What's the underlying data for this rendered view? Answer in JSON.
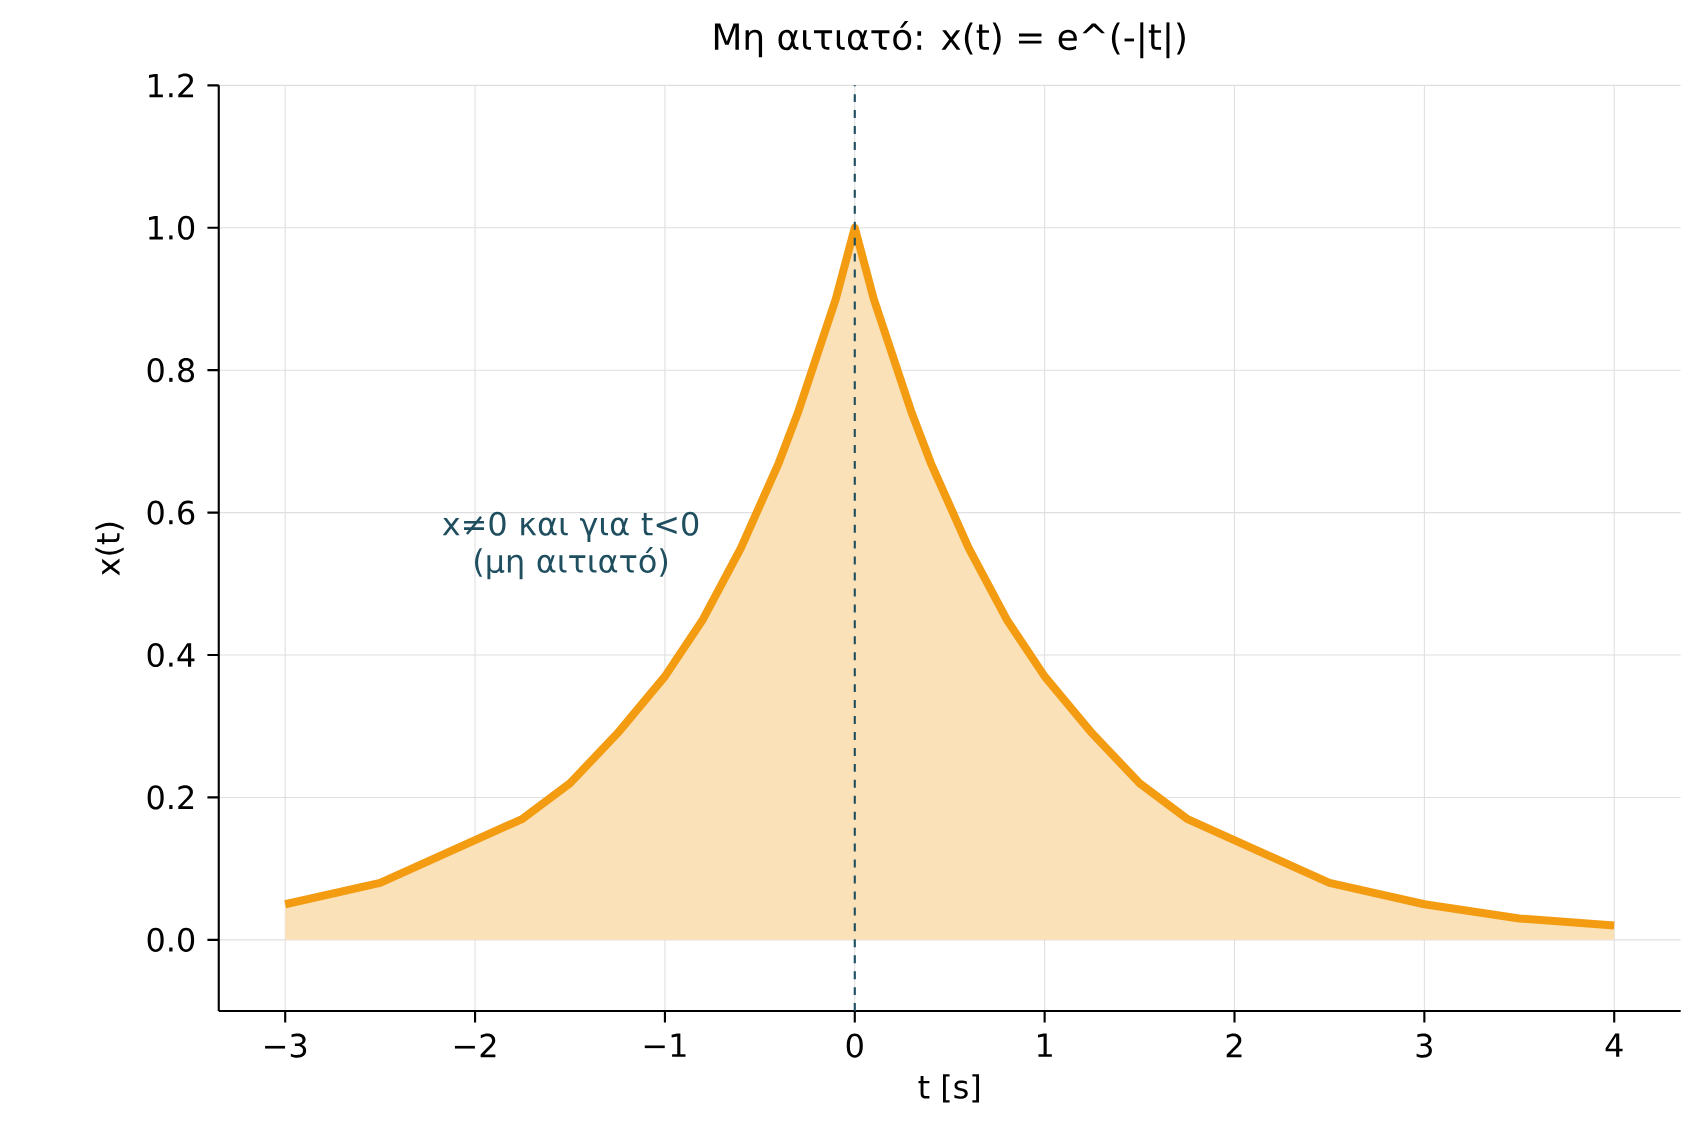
{
  "chart_data": {
    "type": "area",
    "title": "Μη αιτιατό: x(t) = e^(-|t|)",
    "xlabel": "t [s]",
    "ylabel": "x(t)",
    "x": [
      -3,
      -2.5,
      -2,
      -1.75,
      -1.5,
      -1.25,
      -1,
      -0.8,
      -0.6,
      -0.4,
      -0.3,
      -0.2,
      -0.1,
      0,
      0.1,
      0.2,
      0.3,
      0.4,
      0.6,
      0.8,
      1,
      1.25,
      1.5,
      1.75,
      2,
      2.5,
      3,
      3.5,
      4
    ],
    "series": [
      {
        "color": "#f39c12",
        "values": [
          0.05,
          0.08,
          0.14,
          0.17,
          0.22,
          0.29,
          0.37,
          0.45,
          0.55,
          0.67,
          0.74,
          0.82,
          0.9,
          1.0,
          0.9,
          0.82,
          0.74,
          0.67,
          0.55,
          0.45,
          0.37,
          0.29,
          0.22,
          0.17,
          0.14,
          0.08,
          0.05,
          0.03,
          0.02
        ]
      }
    ],
    "xlim": [
      -3.35,
      4.35
    ],
    "ylim": [
      -0.1,
      1.2
    ],
    "xticks": [
      {
        "value": -3,
        "label": "−3"
      },
      {
        "value": -2,
        "label": "−2"
      },
      {
        "value": -1,
        "label": "−1"
      },
      0,
      1,
      2,
      3,
      4
    ],
    "yticks": [
      {
        "value": 0,
        "label": "0.0"
      },
      {
        "value": 0.2,
        "label": "0.2"
      },
      {
        "value": 0.4,
        "label": "0.4"
      },
      {
        "value": 0.6,
        "label": "0.6"
      },
      {
        "value": 0.8,
        "label": "0.8"
      },
      {
        "value": 1,
        "label": "1.0"
      },
      1.2
    ],
    "grid": true,
    "line_style": "solid",
    "marker": "none",
    "ref_lines": [
      {
        "axis": "x",
        "value": 0,
        "color": "#1f4e5f",
        "line_style": "dashed"
      }
    ],
    "annotations": [
      "x≠0 και για t<0 (μη αιτιατό)"
    ]
  }
}
